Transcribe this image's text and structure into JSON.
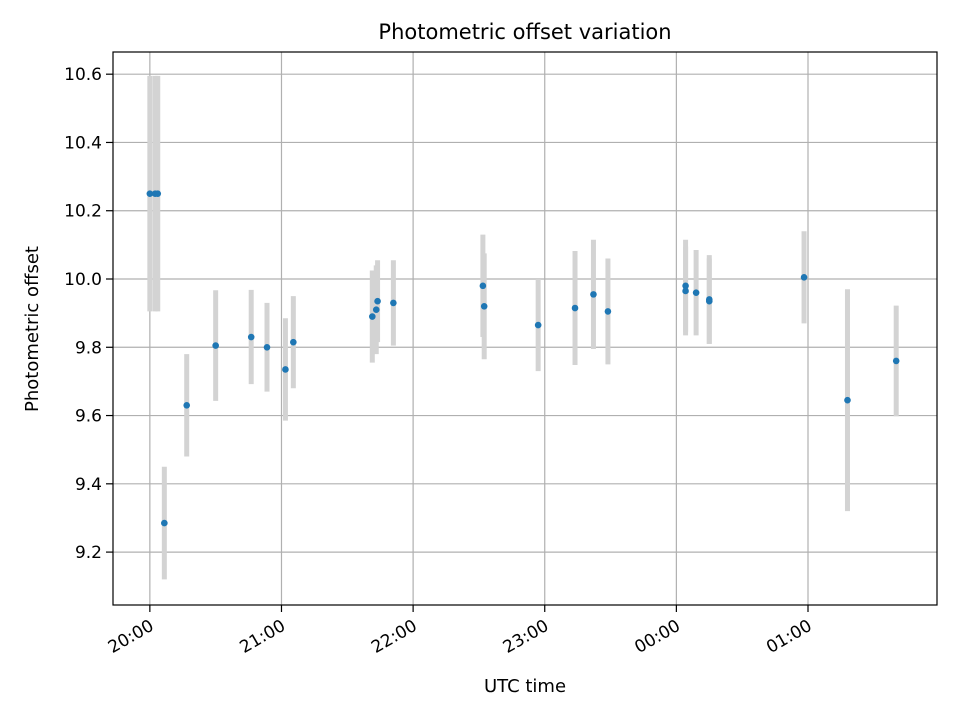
{
  "chart_data": {
    "type": "scatter",
    "title": "Photometric offset variation",
    "xlabel": "UTC time",
    "ylabel": "Photometric offset",
    "x_unit": "UTC time (hours after midnight of the first night; values above 24 wrap past 00:00)",
    "xlim": [
      19.72,
      25.98
    ],
    "ylim": [
      9.045,
      10.665
    ],
    "grid": true,
    "x_ticks": [
      {
        "value": 20,
        "label": "20:00"
      },
      {
        "value": 21,
        "label": "21:00"
      },
      {
        "value": 22,
        "label": "22:00"
      },
      {
        "value": 23,
        "label": "23:00"
      },
      {
        "value": 24,
        "label": "00:00"
      },
      {
        "value": 25,
        "label": "01:00"
      }
    ],
    "y_ticks": [
      {
        "value": 9.2,
        "label": "9.2"
      },
      {
        "value": 9.4,
        "label": "9.4"
      },
      {
        "value": 9.6,
        "label": "9.6"
      },
      {
        "value": 9.8,
        "label": "9.8"
      },
      {
        "value": 10.0,
        "label": "10.0"
      },
      {
        "value": 10.2,
        "label": "10.2"
      },
      {
        "value": 10.4,
        "label": "10.4"
      },
      {
        "value": 10.6,
        "label": "10.6"
      }
    ],
    "colors": {
      "point": "#1f77b4",
      "errorbar": "#d3d3d3",
      "grid": "#b0b0b0",
      "axes": "#000000"
    },
    "points": [
      {
        "x": 20.0,
        "y": 10.25,
        "err": 0.345
      },
      {
        "x": 20.04,
        "y": 10.25,
        "err": 0.345
      },
      {
        "x": 20.06,
        "y": 10.25,
        "err": 0.345
      },
      {
        "x": 20.11,
        "y": 9.285,
        "err": 0.165
      },
      {
        "x": 20.28,
        "y": 9.63,
        "err": 0.15
      },
      {
        "x": 20.5,
        "y": 9.805,
        "err": 0.162
      },
      {
        "x": 20.77,
        "y": 9.83,
        "err": 0.138
      },
      {
        "x": 20.89,
        "y": 9.8,
        "err": 0.13
      },
      {
        "x": 21.03,
        "y": 9.735,
        "err": 0.15
      },
      {
        "x": 21.09,
        "y": 9.815,
        "err": 0.135
      },
      {
        "x": 21.69,
        "y": 9.89,
        "err": 0.135
      },
      {
        "x": 21.72,
        "y": 9.91,
        "err": 0.13
      },
      {
        "x": 21.73,
        "y": 9.935,
        "err": 0.12
      },
      {
        "x": 21.85,
        "y": 9.93,
        "err": 0.125
      },
      {
        "x": 22.53,
        "y": 9.98,
        "err": 0.15
      },
      {
        "x": 22.54,
        "y": 9.92,
        "err": 0.155
      },
      {
        "x": 22.95,
        "y": 9.865,
        "err": 0.135
      },
      {
        "x": 23.23,
        "y": 9.915,
        "err": 0.167
      },
      {
        "x": 23.37,
        "y": 9.955,
        "err": 0.16
      },
      {
        "x": 23.48,
        "y": 9.905,
        "err": 0.155
      },
      {
        "x": 24.07,
        "y": 9.98,
        "err": 0.135
      },
      {
        "x": 24.07,
        "y": 9.965,
        "err": 0.13
      },
      {
        "x": 24.15,
        "y": 9.96,
        "err": 0.125
      },
      {
        "x": 24.25,
        "y": 9.94,
        "err": 0.13
      },
      {
        "x": 24.25,
        "y": 9.935,
        "err": 0.125
      },
      {
        "x": 24.97,
        "y": 10.005,
        "err": 0.135
      },
      {
        "x": 25.3,
        "y": 9.645,
        "err": 0.325
      },
      {
        "x": 25.67,
        "y": 9.76,
        "err": 0.162
      }
    ]
  }
}
